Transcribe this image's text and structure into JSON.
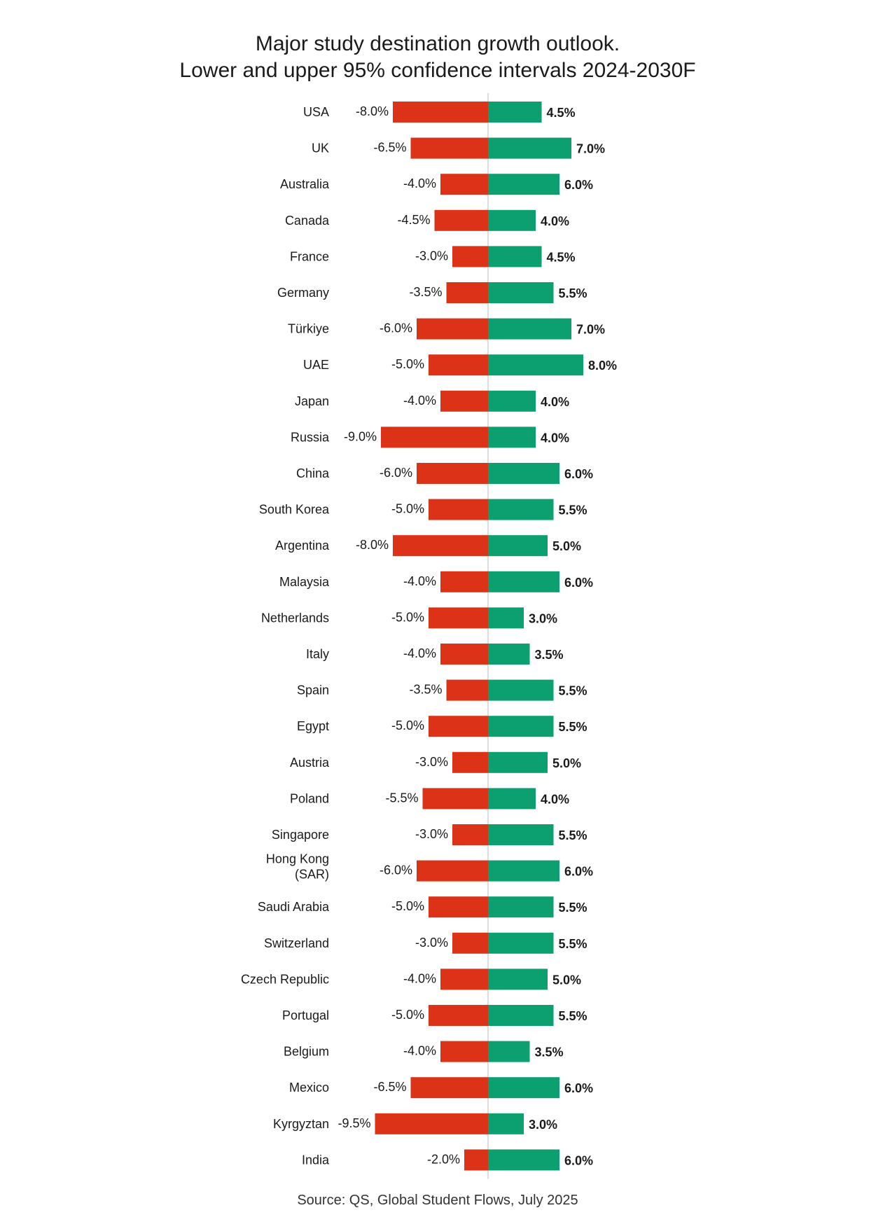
{
  "chart_data": {
    "type": "bar",
    "title": [
      "Major study destination growth outlook.",
      "Lower and upper 95% confidence intervals 2024-2030F"
    ],
    "source": "Source: QS, Global Student Flows, July 2025",
    "categories": [
      [
        "USA"
      ],
      [
        "UK"
      ],
      [
        "Australia"
      ],
      [
        "Canada"
      ],
      [
        "France"
      ],
      [
        "Germany"
      ],
      [
        "Türkiye"
      ],
      [
        "UAE"
      ],
      [
        "Japan"
      ],
      [
        "Russia"
      ],
      [
        "China"
      ],
      [
        "South Korea"
      ],
      [
        "Argentina"
      ],
      [
        "Malaysia"
      ],
      [
        "Netherlands"
      ],
      [
        "Italy"
      ],
      [
        "Spain"
      ],
      [
        "Egypt"
      ],
      [
        "Austria"
      ],
      [
        "Poland"
      ],
      [
        "Singapore"
      ],
      [
        "Hong Kong",
        "(SAR)"
      ],
      [
        "Saudi Arabia"
      ],
      [
        "Switzerland"
      ],
      [
        "Czech Republic"
      ],
      [
        "Portugal"
      ],
      [
        "Belgium"
      ],
      [
        "Mexico"
      ],
      [
        "Kyrgyztan"
      ],
      [
        "India"
      ]
    ],
    "series": [
      {
        "values": [
          -8.0,
          -6.5,
          -4.0,
          -4.5,
          -3.0,
          -3.5,
          -6.0,
          -5.0,
          -4.0,
          -9.0,
          -6.0,
          -5.0,
          -8.0,
          -4.0,
          -5.0,
          -4.0,
          -3.5,
          -5.0,
          -3.0,
          -5.5,
          -3.0,
          -6.0,
          -5.0,
          -3.0,
          -4.0,
          -5.0,
          -4.0,
          -6.5,
          -9.5,
          -2.0
        ],
        "labels": [
          "-8.0%",
          "-6.5%",
          "-4.0%",
          "-4.5%",
          "-3.0%",
          "-3.5%",
          "-6.0%",
          "-5.0%",
          "-4.0%",
          "-9.0%",
          "-6.0%",
          "-5.0%",
          "-8.0%",
          "-4.0%",
          "-5.0%",
          "-4.0%",
          "-3.5%",
          "-5.0%",
          "-3.0%",
          "-5.5%",
          "-3.0%",
          "-6.0%",
          "-5.0%",
          "-3.0%",
          "-4.0%",
          "-5.0%",
          "-4.0%",
          "-6.5%",
          "-9.5%",
          "-2.0%"
        ],
        "color": "#dc3318"
      },
      {
        "values": [
          4.5,
          7.0,
          6.0,
          4.0,
          4.5,
          5.5,
          7.0,
          8.0,
          4.0,
          4.0,
          6.0,
          5.5,
          5.0,
          6.0,
          3.0,
          3.5,
          5.5,
          5.5,
          5.0,
          4.0,
          5.5,
          6.0,
          5.5,
          5.5,
          5.0,
          5.5,
          3.5,
          6.0,
          3.0,
          6.0
        ],
        "labels": [
          "4.5%",
          "7.0%",
          "6.0%",
          "4.0%",
          "4.5%",
          "5.5%",
          "7.0%",
          "8.0%",
          "4.0%",
          "4.0%",
          "6.0%",
          "5.5%",
          "5.0%",
          "6.0%",
          "3.0%",
          "3.5%",
          "5.5%",
          "5.5%",
          "5.0%",
          "4.0%",
          "5.5%",
          "6.0%",
          "5.5%",
          "5.5%",
          "5.0%",
          "5.5%",
          "3.5%",
          "6.0%",
          "3.0%",
          "6.0%"
        ],
        "color": "#0ca070"
      }
    ],
    "axis_color": "#bbbbbb",
    "grid": false
  }
}
